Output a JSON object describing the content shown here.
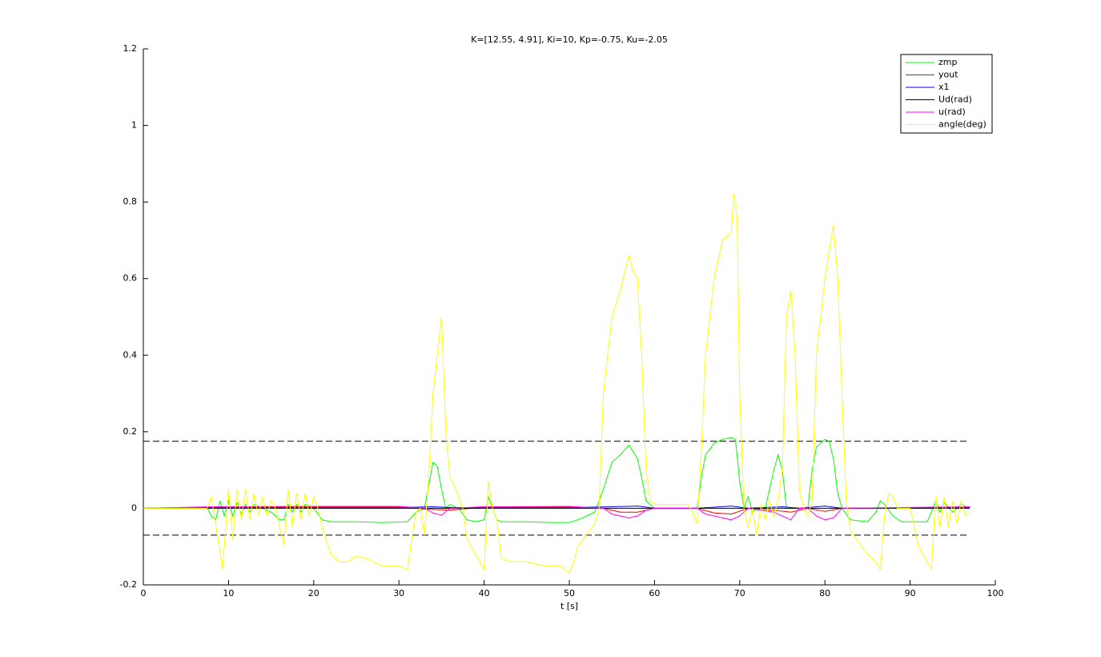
{
  "chart_data": {
    "type": "line",
    "title": "K=[12.55, 4.91], Ki=10, Kp=-0.75, Ku=-2.05",
    "x_label": "t [s]",
    "xlim": [
      0,
      100
    ],
    "xticks": [
      0,
      10,
      20,
      30,
      40,
      50,
      60,
      70,
      80,
      90,
      100
    ],
    "ylim": [
      -0.2,
      1.2
    ],
    "yticks": [
      -0.2,
      0,
      0.2,
      0.4,
      0.6,
      0.8,
      1,
      1.2
    ],
    "legend": "top-right",
    "hlines": [
      0.175,
      -0.07
    ],
    "hline_x": [
      0,
      97
    ],
    "hline_color": "#000000",
    "series": [
      {
        "name": "zmp",
        "color": "#00ff00",
        "x": [
          0,
          7.5,
          8,
          8.5,
          9,
          9.5,
          10,
          10.5,
          11,
          11.5,
          12,
          12.5,
          13,
          14,
          15,
          16,
          16.5,
          17,
          17.5,
          18,
          18.5,
          19,
          20,
          21,
          22,
          25,
          28,
          31,
          32,
          33,
          33.5,
          34,
          34.5,
          35,
          35.5,
          36,
          37,
          38,
          39,
          40,
          40.5,
          41,
          41.5,
          42,
          45,
          48,
          50,
          51,
          52,
          53,
          54,
          55,
          56,
          57,
          58,
          58.5,
          59,
          60,
          64,
          65,
          65.5,
          66,
          67,
          68,
          69,
          69.5,
          70,
          70.5,
          71,
          71.5,
          72,
          73,
          74,
          74.5,
          75,
          75.5,
          76,
          77,
          78,
          78.5,
          79,
          80,
          80.5,
          81,
          81.5,
          82,
          83,
          85,
          86,
          86.5,
          87,
          88,
          89,
          92,
          92.5,
          93,
          93.5,
          94,
          95,
          96,
          97
        ],
        "values": [
          0,
          0,
          -0.02,
          -0.03,
          0.02,
          -0.02,
          0.02,
          -0.02,
          0.015,
          -0.015,
          0.01,
          -0.01,
          0.01,
          0,
          -0.01,
          -0.03,
          -0.03,
          0.01,
          -0.01,
          0.01,
          -0.01,
          0.01,
          0,
          -0.03,
          -0.035,
          -0.035,
          -0.037,
          -0.035,
          -0.01,
          0,
          0.06,
          0.12,
          0.11,
          0.05,
          0,
          0.01,
          0,
          -0.03,
          -0.035,
          -0.03,
          0.03,
          0,
          -0.03,
          -0.035,
          -0.035,
          -0.037,
          -0.037,
          -0.03,
          -0.02,
          -0.01,
          0.05,
          0.12,
          0.14,
          0.165,
          0.13,
          0.08,
          0.02,
          0,
          0,
          0,
          0.08,
          0.14,
          0.17,
          0.18,
          0.185,
          0.18,
          0.07,
          0,
          0.03,
          -0.01,
          0,
          0,
          0.1,
          0.14,
          0.1,
          0,
          0,
          0,
          0,
          0.1,
          0.16,
          0.18,
          0.175,
          0.13,
          0.04,
          0,
          -0.03,
          -0.035,
          -0.01,
          0.02,
          0.01,
          -0.02,
          -0.035,
          -0.035,
          -0.01,
          0.02,
          -0.01,
          0.015,
          -0.01,
          0.01,
          0
        ]
      },
      {
        "name": "yout",
        "color": "#ff0000",
        "x": [
          0,
          8,
          20,
          30,
          33,
          36,
          40,
          50,
          54,
          56,
          58,
          60,
          65,
          67,
          69,
          71,
          74,
          76,
          78,
          80,
          82,
          97
        ],
        "values": [
          0,
          0.003,
          0.003,
          0.004,
          -0.002,
          -0.005,
          0.003,
          0.004,
          0,
          -0.01,
          -0.01,
          0,
          0,
          -0.012,
          -0.015,
          0,
          -0.005,
          -0.01,
          0,
          -0.008,
          0,
          0.003
        ]
      },
      {
        "name": "x1",
        "color": "#0000ff",
        "x": [
          0,
          8,
          20,
          30,
          34,
          36,
          40,
          50,
          55,
          58,
          60,
          65,
          69,
          71,
          75,
          77,
          80,
          82,
          97
        ],
        "values": [
          0,
          0.002,
          0.002,
          0.002,
          0.004,
          0.002,
          0.002,
          0.002,
          0.004,
          0.006,
          0,
          0,
          0.006,
          0,
          0.004,
          0,
          0.006,
          0,
          0.002
        ]
      },
      {
        "name": "Ud(rad)",
        "color": "#000000",
        "x": [
          0,
          97
        ],
        "values": [
          0,
          0
        ]
      },
      {
        "name": "u(rad)",
        "color": "#ff00ff",
        "x": [
          0,
          8,
          20,
          30,
          33,
          34,
          35,
          36,
          40,
          50,
          54,
          55,
          57,
          58,
          59,
          60,
          65,
          66,
          69,
          70,
          71,
          74,
          75,
          76,
          77,
          78,
          79,
          80,
          81,
          82,
          97
        ],
        "values": [
          0,
          0.004,
          0.005,
          0.005,
          0,
          -0.012,
          -0.018,
          0,
          0.004,
          0.005,
          0,
          -0.015,
          -0.025,
          -0.02,
          -0.005,
          0,
          0,
          -0.015,
          -0.03,
          -0.02,
          0,
          -0.01,
          -0.02,
          -0.03,
          0,
          0,
          -0.02,
          -0.03,
          -0.025,
          0,
          0.004
        ]
      },
      {
        "name": "angle(deg)",
        "color": "#ffff00",
        "x": [
          0,
          7.5,
          8,
          9.3,
          10,
          10.5,
          11,
          11.5,
          12,
          12.5,
          13,
          13.5,
          14,
          14.5,
          15,
          15.5,
          16,
          16.5,
          17,
          17.5,
          18,
          18.5,
          19,
          19.5,
          20,
          20.5,
          21,
          22,
          23,
          24,
          25,
          26,
          27,
          28,
          29,
          30,
          31,
          31.5,
          32,
          32.5,
          33,
          33.5,
          34,
          34.5,
          35,
          35.5,
          36,
          36.5,
          37,
          37.5,
          38,
          39,
          40,
          40.5,
          41,
          41.5,
          42,
          43,
          44,
          45,
          46,
          47,
          48,
          49,
          50,
          50.5,
          51,
          52,
          53,
          53.5,
          54,
          55,
          56,
          57,
          57.5,
          58,
          58.5,
          59,
          59.5,
          60,
          62,
          64,
          65,
          65.5,
          66,
          67,
          68,
          69,
          69.3,
          69.7,
          70,
          70.5,
          71,
          71.5,
          72,
          72.5,
          73,
          73.5,
          74,
          74.5,
          75,
          75.5,
          76,
          76.5,
          77,
          77.5,
          78,
          78.5,
          79,
          80,
          81,
          81.5,
          82,
          82.5,
          83,
          84,
          85,
          86,
          86.5,
          87,
          87.5,
          88,
          88.5,
          89,
          90,
          91,
          92,
          92.5,
          93,
          93.5,
          94,
          94.5,
          95,
          95.5,
          96,
          96.5,
          97
        ],
        "values": [
          0,
          0,
          0.03,
          -0.16,
          0.05,
          -0.08,
          0.05,
          -0.03,
          0.05,
          -0.03,
          0.04,
          -0.02,
          0.03,
          -0.02,
          0.02,
          0,
          -0.05,
          -0.095,
          0.05,
          -0.05,
          0.04,
          -0.03,
          0.04,
          -0.02,
          0.03,
          0,
          -0.05,
          -0.12,
          -0.14,
          -0.14,
          -0.125,
          -0.13,
          -0.14,
          -0.15,
          -0.15,
          -0.15,
          -0.16,
          -0.08,
          -0.01,
          0,
          -0.07,
          0.08,
          0.3,
          0.4,
          0.5,
          0.2,
          0.08,
          0.06,
          0.03,
          0,
          -0.08,
          -0.12,
          -0.16,
          0.07,
          0,
          -0.03,
          -0.13,
          -0.14,
          -0.14,
          -0.14,
          -0.145,
          -0.15,
          -0.15,
          -0.15,
          -0.17,
          -0.14,
          -0.1,
          -0.07,
          -0.04,
          0,
          0.3,
          0.5,
          0.57,
          0.66,
          0.62,
          0.6,
          0.4,
          0.1,
          0.02,
          0.01,
          0.01,
          0.01,
          -0.04,
          0.15,
          0.4,
          0.6,
          0.7,
          0.72,
          0.82,
          0.76,
          0.3,
          0,
          -0.05,
          0,
          -0.07,
          0.01,
          -0.03,
          0.02,
          -0.02,
          0.02,
          0.1,
          0.5,
          0.57,
          0.4,
          0.05,
          0,
          -0.02,
          0.02,
          0.4,
          0.6,
          0.74,
          0.6,
          0.3,
          0.02,
          -0.06,
          -0.09,
          -0.12,
          -0.14,
          -0.16,
          -0.02,
          0.04,
          0.03,
          0,
          0,
          0,
          -0.1,
          -0.14,
          -0.16,
          0.03,
          -0.05,
          0.03,
          -0.05,
          0.02,
          -0.04,
          0.02,
          -0.02,
          -0.01
        ]
      }
    ]
  }
}
